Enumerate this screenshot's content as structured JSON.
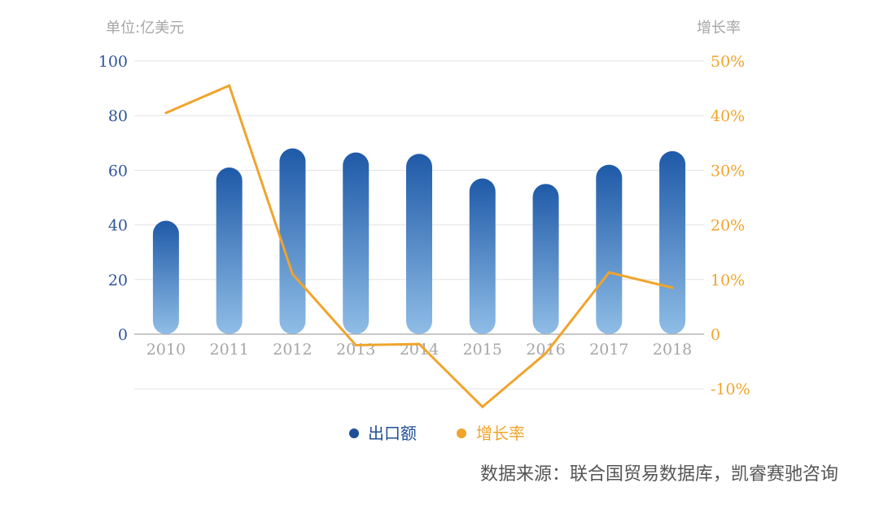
{
  "chart_data": {
    "type": "bar",
    "left_unit": "单位:亿美元",
    "right_unit": "增长率",
    "categories": [
      "2010",
      "2011",
      "2012",
      "2013",
      "2014",
      "2015",
      "2016",
      "2017",
      "2018"
    ],
    "series": [
      {
        "name": "出口额",
        "type": "bar",
        "axis": "left",
        "values": [
          41.5,
          61,
          68,
          66.5,
          66,
          57,
          55,
          62,
          67
        ]
      },
      {
        "name": "增长率",
        "type": "line",
        "axis": "right",
        "values": [
          40.5,
          45.5,
          11,
          -2,
          -1.8,
          -13.3,
          -3.5,
          11.3,
          8.5
        ]
      }
    ],
    "left_axis": {
      "ticks": [
        "0",
        "20",
        "40",
        "60",
        "80",
        "100"
      ],
      "range": [
        -20,
        100
      ]
    },
    "right_axis": {
      "ticks": [
        "-10%",
        "0",
        "10%",
        "20%",
        "30%",
        "40%",
        "50%"
      ],
      "range": [
        -10,
        50
      ]
    },
    "legend": {
      "position": "bottom-center"
    },
    "grid": true,
    "colors": {
      "bar_top": "#1f5aa8",
      "bar_bottom": "#8fbde6",
      "line": "#f0a42c",
      "left_tick": "#2f5597",
      "right_tick": "#f0a42c",
      "cat_tick": "#a6a6a6",
      "grid": "#e3e3e3"
    }
  },
  "source_note": "数据来源：联合国贸易数据库，凯睿赛驰咨询"
}
